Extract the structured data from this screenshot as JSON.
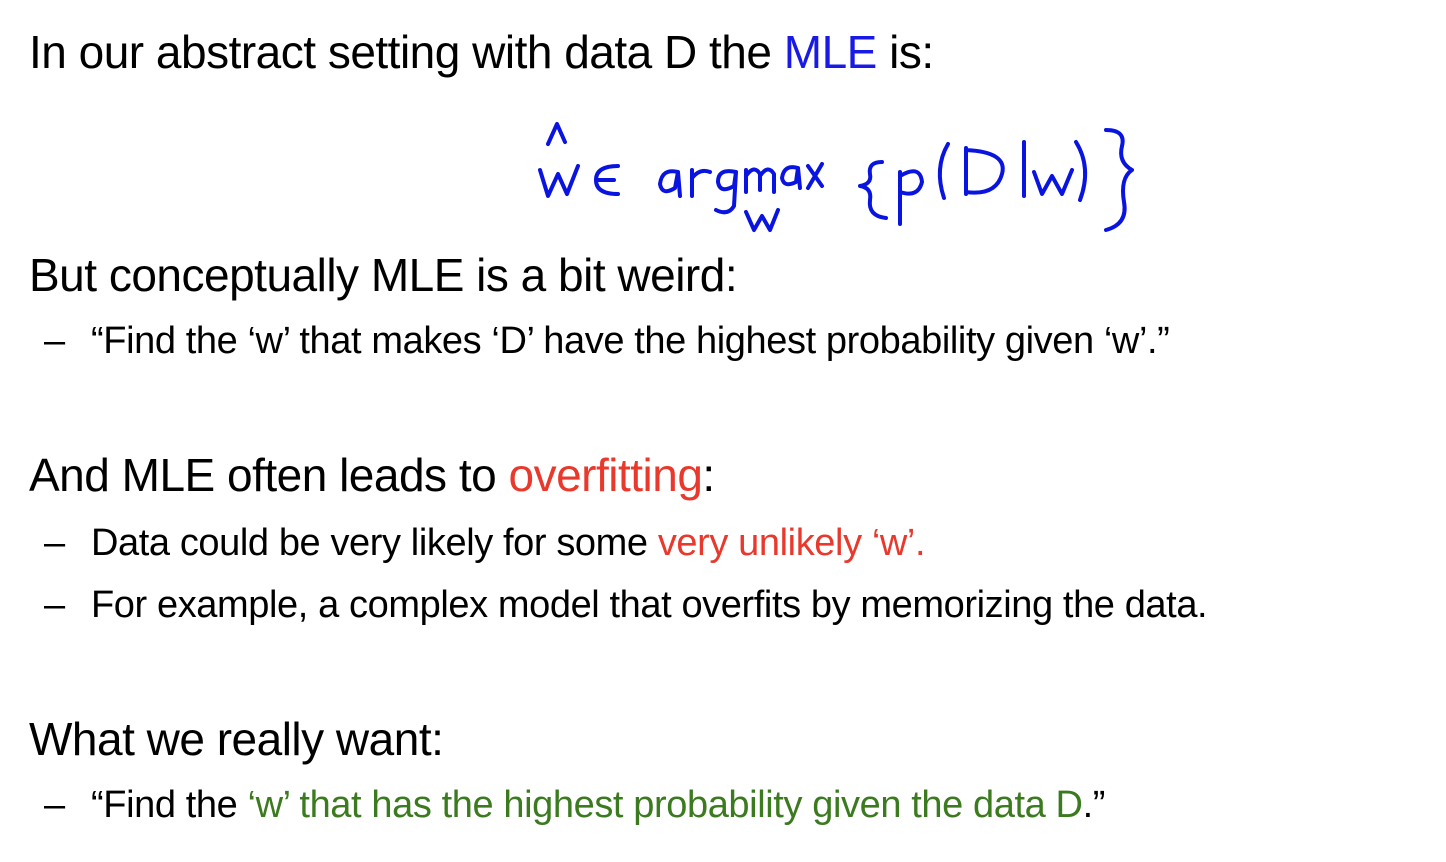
{
  "colors": {
    "mle_blue": "#1a1ae6",
    "overfit_red": "#e8392c",
    "want_green": "#3b7a1f",
    "handwriting_blue": "#0a14e0"
  },
  "heading1": {
    "before": "In our abstract setting with data D the ",
    "highlight": "MLE",
    "after": " is:"
  },
  "formula": {
    "text": "ŵ ∈ argmax_w { p(D|w) }",
    "w_hat": "w",
    "in": "∈",
    "argmax": "argmax",
    "sub": "w",
    "inner": "p(D|w)"
  },
  "heading2": "But conceptually MLE is a bit weird:",
  "bullet1": {
    "dash": "–",
    "text": "“Find the ‘w’ that makes ‘D’ have the highest probability given ‘w’.”"
  },
  "heading3": {
    "before": "And MLE often leads to ",
    "highlight": "overfitting",
    "after": ":"
  },
  "bullet2": {
    "dash": "–",
    "before": "Data could be very likely for some ",
    "highlight": "very unlikely ‘w’."
  },
  "bullet3": {
    "dash": "–",
    "text": "For example, a complex model that overfits by memorizing the data."
  },
  "heading4": "What we really want:",
  "bullet4": {
    "dash": "–",
    "before": "“Find the ",
    "highlight": "‘w’ that has the highest probability given the data D",
    "after": ".”"
  }
}
